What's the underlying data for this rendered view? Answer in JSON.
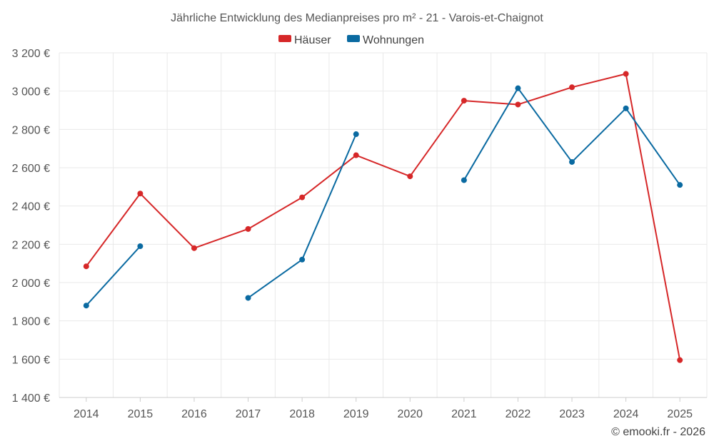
{
  "chart_data": {
    "type": "line",
    "title": "Jährliche Entwicklung des Medianpreises pro m² - 21 - Varois-et-Chaignot",
    "categories": [
      "2014",
      "2015",
      "2016",
      "2017",
      "2018",
      "2019",
      "2020",
      "2021",
      "2022",
      "2023",
      "2024",
      "2025"
    ],
    "series": [
      {
        "name": "Häuser",
        "color": "#d62728",
        "values": [
          2085,
          2465,
          2180,
          2280,
          2445,
          2665,
          2555,
          2950,
          2930,
          3020,
          3090,
          1595
        ]
      },
      {
        "name": "Wohnungen",
        "color": "#0a6aa1",
        "values": [
          1880,
          2190,
          null,
          1920,
          2120,
          2775,
          null,
          2535,
          3015,
          2630,
          2910,
          2510
        ]
      }
    ],
    "ylim": [
      1400,
      3200
    ],
    "yticks": [
      1400,
      1600,
      1800,
      2000,
      2200,
      2400,
      2600,
      2800,
      3000,
      3200
    ],
    "ytick_labels": [
      "1 400 €",
      "1 600 €",
      "1 800 €",
      "2 000 €",
      "2 200 €",
      "2 400 €",
      "2 600 €",
      "2 800 €",
      "3 000 €",
      "3 200 €"
    ],
    "xlabel": "",
    "ylabel": "",
    "grid": true,
    "legend_position": "top-center"
  },
  "credit": "© emooki.fr - 2026"
}
